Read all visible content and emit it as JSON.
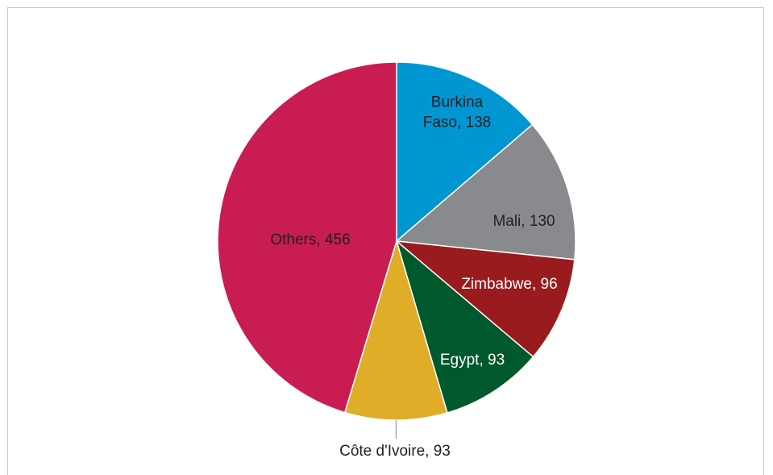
{
  "chart_data": {
    "type": "pie",
    "title": "",
    "colors": {
      "Burkina Faso": "#0096d2",
      "Mali": "#898a8d",
      "Zimbabwe": "#9a1b1e",
      "Egypt": "#00582d",
      "Côte d'Ivoire": "#dfad27",
      "Others": "#c91d51"
    },
    "slices": [
      {
        "name": "Burkina Faso",
        "value": 138,
        "label_lines": [
          "Burkina",
          "Faso, 138"
        ],
        "label_color": "#231f20"
      },
      {
        "name": "Mali",
        "value": 130,
        "label_lines": [
          "Mali, 130"
        ],
        "label_color": "#231f20"
      },
      {
        "name": "Zimbabwe",
        "value": 96,
        "label_lines": [
          "Zimbabwe, 96"
        ],
        "label_color": "#ffffff"
      },
      {
        "name": "Egypt",
        "value": 93,
        "label_lines": [
          "Egypt, 93"
        ],
        "label_color": "#ffffff"
      },
      {
        "name": "Côte d'Ivoire",
        "value": 93,
        "label_lines": [
          "Côte d'Ivoire, 93"
        ],
        "label_color": "#231f20"
      },
      {
        "name": "Others",
        "value": 456,
        "label_lines": [
          "Others, 456"
        ],
        "label_color": "#231f20"
      }
    ]
  }
}
